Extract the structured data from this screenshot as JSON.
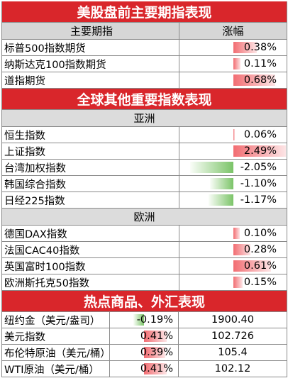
{
  "section1": {
    "title": "美股盘前主要期指表现",
    "col_name": "主要期指",
    "col_change": "涨幅",
    "rows": [
      {
        "name": "标普500指数期货",
        "change": "0.38%",
        "pct": 0.38
      },
      {
        "name": "纳斯达克100指数期货",
        "change": "0.11%",
        "pct": 0.11
      },
      {
        "name": "道指期货",
        "change": "0.68%",
        "pct": 0.68
      }
    ]
  },
  "section2": {
    "title": "全球其他重要指数表现",
    "asia_label": "亚洲",
    "asia_rows": [
      {
        "name": "恒生指数",
        "change": "0.06%",
        "pct": 0.06
      },
      {
        "name": "上证指数",
        "change": "2.49%",
        "pct": 2.49
      },
      {
        "name": "台湾加权指数",
        "change": "-2.05%",
        "pct": -2.05
      },
      {
        "name": "韩国综合指数",
        "change": "-1.10%",
        "pct": -1.1
      },
      {
        "name": "日经225指数",
        "change": "-1.17%",
        "pct": -1.17
      }
    ],
    "europe_label": "欧洲",
    "europe_rows": [
      {
        "name": "德国DAX指数",
        "change": "0.10%",
        "pct": 0.1
      },
      {
        "name": "法国CAC40指数",
        "change": "0.28%",
        "pct": 0.28
      },
      {
        "name": "英国富时100指数",
        "change": "0.61%",
        "pct": 0.61
      },
      {
        "name": "欧洲斯托克50指数",
        "change": "0.15%",
        "pct": 0.15
      }
    ]
  },
  "section3": {
    "title": "热点商品、外汇表现",
    "rows": [
      {
        "name": "纽约金（美元/盎司）",
        "change": "-0.19%",
        "pct": -0.19,
        "price": "1900.40"
      },
      {
        "name": "美元指数",
        "change": "0.41%",
        "pct": 0.41,
        "price": "102.726"
      },
      {
        "name": "布伦特原油（美元/桶）",
        "change": "0.39%",
        "pct": 0.39,
        "price": "105.4"
      },
      {
        "name": "WTI原油（美元/桶）",
        "change": "0.41%",
        "pct": 0.41,
        "price": "102.12"
      }
    ]
  },
  "colors": {
    "banner": "#d9262b",
    "positive_bar": "#f26d72",
    "negative_bar": "#7bc468"
  }
}
